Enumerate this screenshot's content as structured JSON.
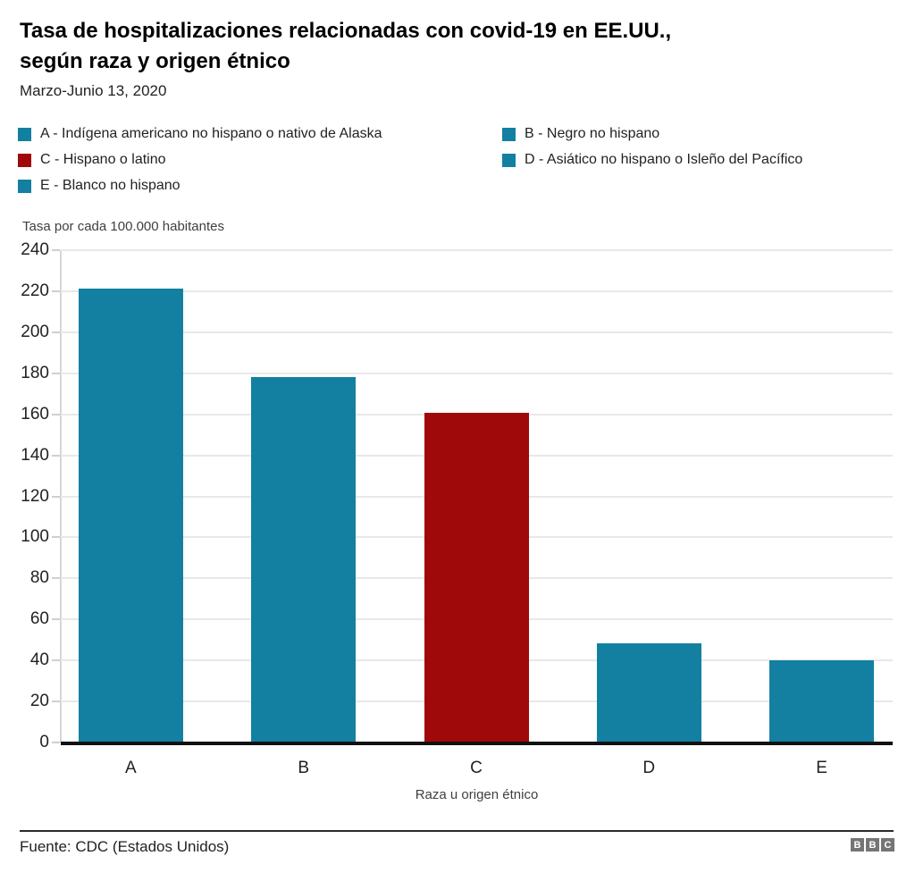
{
  "header": {
    "title_line1": "Tasa de hospitalizaciones relacionadas con covid-19 en EE.UU.,",
    "title_line2": "según raza y origen étnico",
    "subtitle": "Marzo-Junio 13, 2020"
  },
  "chart_data": {
    "type": "bar",
    "title": "Tasa de hospitalizaciones relacionadas con covid-19 en EE.UU., según raza y origen étnico",
    "subtitle": "Marzo-Junio 13, 2020",
    "unit_label": "Tasa por cada 100.000 habitantes",
    "xlabel": "Raza u origen étnico",
    "categories": [
      "A",
      "B",
      "C",
      "D",
      "E"
    ],
    "values": [
      221.2,
      178.1,
      160.7,
      48.4,
      40.1
    ],
    "bar_colors": [
      "#1380a1",
      "#1380a1",
      "#a00909",
      "#1380a1",
      "#1380a1"
    ],
    "ylim": [
      0,
      240
    ],
    "yticks": [
      0,
      20,
      40,
      60,
      80,
      100,
      120,
      140,
      160,
      180,
      200,
      220,
      240
    ],
    "grid": true,
    "legend_position": "top",
    "legend": [
      {
        "key": "A",
        "label": "A - Indígena americano no hispano o nativo de Alaska",
        "color": "#1380a1"
      },
      {
        "key": "B",
        "label": "B - Negro no hispano",
        "color": "#1380a1"
      },
      {
        "key": "C",
        "label": "C - Hispano o latino",
        "color": "#a00909"
      },
      {
        "key": "D",
        "label": "D - Asiático no hispano o Isleño del Pacífico",
        "color": "#1380a1"
      },
      {
        "key": "E",
        "label": "E - Blanco no hispano",
        "color": "#1380a1"
      }
    ]
  },
  "footer": {
    "source": "Fuente: CDC (Estados Unidos)",
    "logo_letters": [
      "B",
      "B",
      "C"
    ]
  },
  "colors": {
    "teal": "#1380a1",
    "red": "#a00909",
    "logo_gray": "#757575"
  }
}
